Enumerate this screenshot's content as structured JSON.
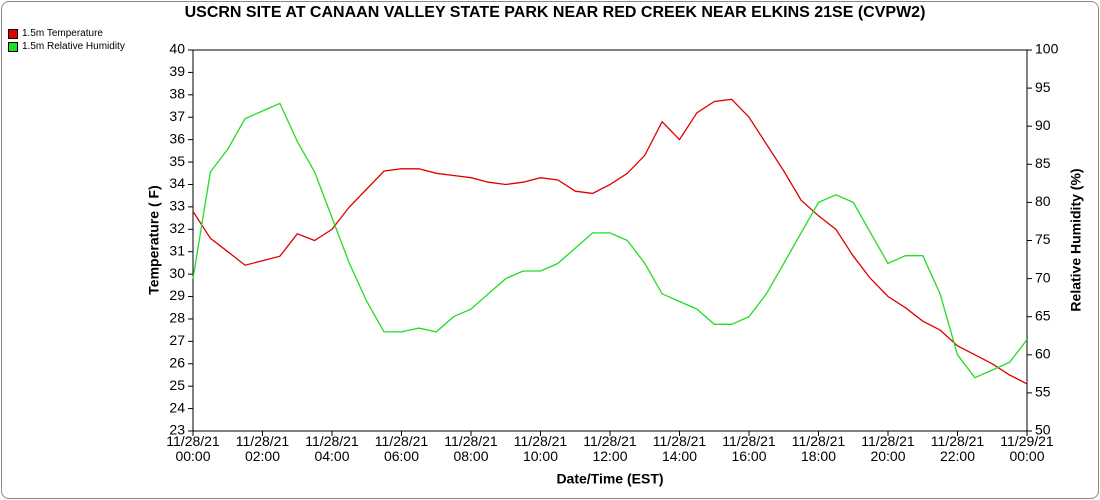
{
  "chart_data": {
    "type": "line",
    "title": "USCRN SITE AT CANAAN VALLEY STATE PARK NEAR RED CREEK NEAR ELKINS 21SE (CVPW2)",
    "x_label": "Date/Time (EST)",
    "y_label": "Temperature ( F)",
    "y2_label": "Relative Humidity (%)",
    "legend": "top-left",
    "x": [
      "2021-11-28T00:00",
      "2021-11-28T00:30",
      "2021-11-28T01:00",
      "2021-11-28T01:30",
      "2021-11-28T02:00",
      "2021-11-28T02:30",
      "2021-11-28T03:00",
      "2021-11-28T03:30",
      "2021-11-28T04:00",
      "2021-11-28T04:30",
      "2021-11-28T05:00",
      "2021-11-28T05:30",
      "2021-11-28T06:00",
      "2021-11-28T06:30",
      "2021-11-28T07:00",
      "2021-11-28T07:30",
      "2021-11-28T08:00",
      "2021-11-28T08:30",
      "2021-11-28T09:00",
      "2021-11-28T09:30",
      "2021-11-28T10:00",
      "2021-11-28T10:30",
      "2021-11-28T11:00",
      "2021-11-28T11:30",
      "2021-11-28T12:00",
      "2021-11-28T12:30",
      "2021-11-28T13:00",
      "2021-11-28T13:30",
      "2021-11-28T14:00",
      "2021-11-28T14:30",
      "2021-11-28T15:00",
      "2021-11-28T15:30",
      "2021-11-28T16:00",
      "2021-11-28T16:30",
      "2021-11-28T17:00",
      "2021-11-28T17:30",
      "2021-11-28T18:00",
      "2021-11-28T18:30",
      "2021-11-28T19:00",
      "2021-11-28T19:30",
      "2021-11-28T20:00",
      "2021-11-28T20:30",
      "2021-11-28T21:00",
      "2021-11-28T21:30",
      "2021-11-28T22:00",
      "2021-11-28T22:30",
      "2021-11-28T23:00",
      "2021-11-28T23:30",
      "2021-11-29T00:00"
    ],
    "series": [
      {
        "name": "1.5m Temperature",
        "color": "#e00000",
        "axis": "y",
        "values": [
          32.8,
          31.6,
          31.0,
          30.4,
          30.6,
          30.8,
          31.8,
          31.5,
          32.0,
          33.0,
          33.8,
          34.6,
          34.7,
          34.7,
          34.5,
          34.4,
          34.3,
          34.1,
          34.0,
          34.1,
          34.3,
          34.2,
          33.7,
          33.6,
          34.0,
          34.5,
          35.3,
          36.8,
          36.0,
          37.2,
          37.7,
          37.8,
          37.0,
          35.8,
          34.6,
          33.3,
          32.6,
          32.0,
          30.8,
          29.8,
          29.0,
          28.5,
          27.9,
          27.5,
          26.8,
          26.4,
          26.0,
          25.5,
          25.1
        ]
      },
      {
        "name": "1.5m Relative Humidity",
        "color": "#22dd22",
        "axis": "y2",
        "values": [
          70,
          84,
          87,
          91,
          92,
          93,
          88,
          84,
          78,
          72,
          67,
          63,
          63,
          63.5,
          63,
          65,
          66,
          68,
          70,
          71,
          71,
          72,
          74,
          76,
          76,
          75,
          72,
          68,
          67,
          66,
          64,
          64,
          65,
          68,
          72,
          76,
          80,
          81,
          80,
          76,
          72,
          73,
          73,
          68,
          60,
          57,
          58,
          59,
          62
        ]
      }
    ],
    "xlim": [
      "2021-11-28T00:00",
      "2021-11-29T00:00"
    ],
    "xticks": [
      {
        "value": "2021-11-28T00:00",
        "label": "11/28/21\n00:00"
      },
      {
        "value": "2021-11-28T02:00",
        "label": "11/28/21\n02:00"
      },
      {
        "value": "2021-11-28T04:00",
        "label": "11/28/21\n04:00"
      },
      {
        "value": "2021-11-28T06:00",
        "label": "11/28/21\n06:00"
      },
      {
        "value": "2021-11-28T08:00",
        "label": "11/28/21\n08:00"
      },
      {
        "value": "2021-11-28T10:00",
        "label": "11/28/21\n10:00"
      },
      {
        "value": "2021-11-28T12:00",
        "label": "11/28/21\n12:00"
      },
      {
        "value": "2021-11-28T14:00",
        "label": "11/28/21\n14:00"
      },
      {
        "value": "2021-11-28T16:00",
        "label": "11/28/21\n16:00"
      },
      {
        "value": "2021-11-28T18:00",
        "label": "11/28/21\n18:00"
      },
      {
        "value": "2021-11-28T20:00",
        "label": "11/28/21\n20:00"
      },
      {
        "value": "2021-11-28T22:00",
        "label": "11/28/21\n22:00"
      },
      {
        "value": "2021-11-29T00:00",
        "label": "11/29/21\n00:00"
      }
    ],
    "ylim": [
      23,
      40
    ],
    "yticks": [
      23,
      24,
      25,
      26,
      27,
      28,
      29,
      30,
      31,
      32,
      33,
      34,
      35,
      36,
      37,
      38,
      39,
      40
    ],
    "y2lim": [
      50,
      100
    ],
    "y2ticks": [
      50,
      55,
      60,
      65,
      70,
      75,
      80,
      85,
      90,
      95,
      100
    ]
  }
}
